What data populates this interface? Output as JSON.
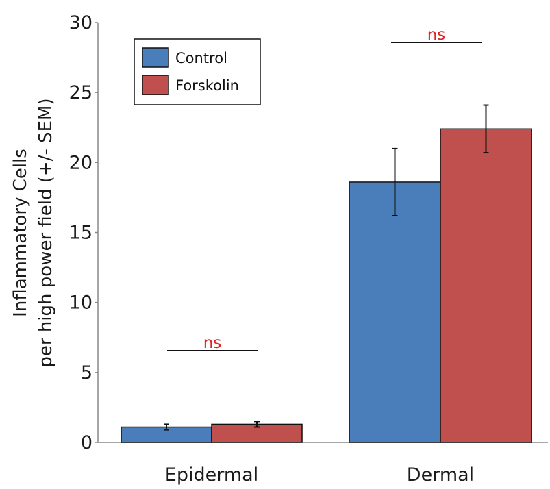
{
  "chart_data": {
    "type": "bar",
    "categories": [
      "Epidermal",
      "Dermal"
    ],
    "series": [
      {
        "name": "Control",
        "color": "#4a7ebb",
        "values": [
          1.1,
          18.6
        ],
        "errors": [
          0.2,
          2.4
        ]
      },
      {
        "name": "Forskolin",
        "color": "#c0504d",
        "values": [
          1.3,
          22.4
        ],
        "errors": [
          0.2,
          1.7
        ]
      }
    ],
    "ylabel_lines": [
      "Inflammatory Cells",
      "per high power field (+/- SEM)"
    ],
    "xlabel": "",
    "ylim": [
      0,
      30
    ],
    "yticks": [
      0,
      5,
      10,
      15,
      20,
      25,
      30
    ],
    "significance": [
      {
        "category": "Epidermal",
        "label": "ns",
        "color": "#e02020"
      },
      {
        "category": "Dermal",
        "label": "ns",
        "color": "#e02020"
      }
    ],
    "legend_position": "top-left",
    "grid": false
  }
}
